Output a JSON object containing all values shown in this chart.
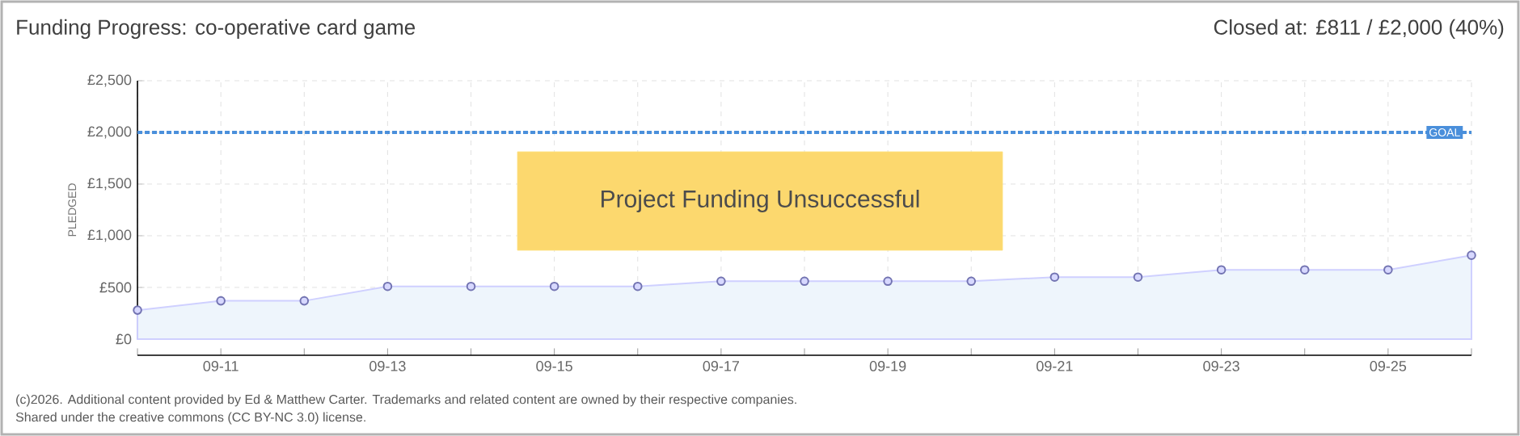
{
  "chart_data": {
    "type": "area",
    "title": "Funding Progress: co-operative card game",
    "subtitle": "Closed at: £811 / £2,000 (40%)",
    "ylabel": "PLEDGED",
    "categories": [
      null,
      "09-11",
      null,
      "09-13",
      null,
      "09-15",
      null,
      "09-17",
      null,
      "09-19",
      null,
      "09-21",
      null,
      "09-23",
      null,
      "09-25",
      null
    ],
    "series": [
      {
        "color": "#eef5fc",
        "values": [
          280,
          370,
          370,
          510,
          510,
          510,
          510,
          560,
          560,
          560,
          560,
          600,
          600,
          670,
          670,
          670,
          811
        ]
      }
    ],
    "ylim": [
      0,
      2500
    ],
    "yticks": [
      {
        "value": 0,
        "label": "£0"
      },
      {
        "value": 500,
        "label": "£500"
      },
      {
        "value": 1000,
        "label": "£1,000"
      },
      {
        "value": 1500,
        "label": "£1,500"
      },
      {
        "value": 2000,
        "label": "£2,000"
      },
      {
        "value": 2500,
        "label": "£2,500"
      }
    ],
    "ref_lines": [
      {
        "axis": "y",
        "value": 2000,
        "label": "GOAL",
        "color": "#4a8fdb",
        "line_style": "dashed"
      }
    ],
    "annotations": [
      "Project Funding Unsuccessful",
      "(c)2026. Additional content provided by Ed & Matthew Carter. Trademarks and related content are owned by their respective companies.",
      "Shared under the creative commons (CC BY-NC 3.0) license."
    ],
    "grid": true,
    "marker": "circle"
  }
}
